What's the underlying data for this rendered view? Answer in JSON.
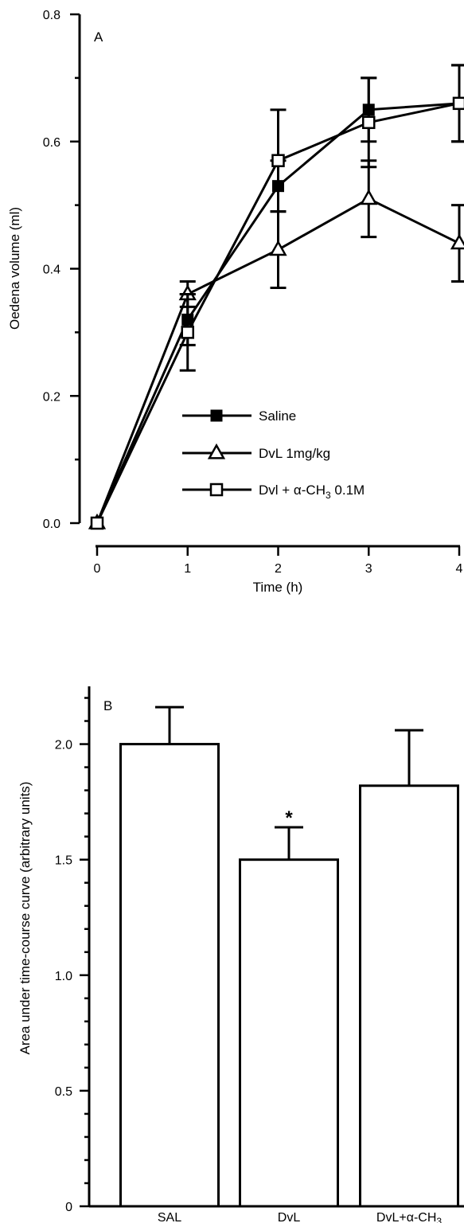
{
  "chart_data": [
    {
      "type": "line",
      "panel_label": "A",
      "xlabel": "Time (h)",
      "ylabel": "Oedena volume (ml)",
      "xlim": [
        0,
        4
      ],
      "ylim": [
        0,
        0.8
      ],
      "x_ticks": [
        0,
        1,
        2,
        3,
        4
      ],
      "x_tick_labels": [
        "0",
        "1",
        "2",
        "3",
        "4"
      ],
      "y_ticks": [
        0,
        0.2,
        0.4,
        0.6,
        0.8
      ],
      "y_tick_labels": [
        "0.0",
        "0.2",
        "0.4",
        "0.6",
        "0.8"
      ],
      "x": [
        0,
        1,
        2,
        3,
        4
      ],
      "legend_position": "bottom-center",
      "series": [
        {
          "name": "Saline",
          "marker": "filled-square",
          "values": [
            0,
            0.32,
            0.53,
            0.65,
            0.66
          ],
          "error": [
            0,
            0.04,
            0.04,
            0.05,
            0.06
          ]
        },
        {
          "name": "DvL 1mg/kg",
          "marker": "open-triangle",
          "values": [
            0,
            0.36,
            0.43,
            0.51,
            0.44
          ],
          "error": [
            0,
            0.02,
            0.06,
            0.06,
            0.06
          ]
        },
        {
          "name": "Dvl + α-CH3 0.1M",
          "legend_main": "Dvl + α-CH",
          "legend_sub": "3",
          "legend_tail": " 0.1M",
          "marker": "open-square",
          "values": [
            0,
            0.3,
            0.57,
            0.63,
            0.66
          ],
          "error": [
            0,
            0.06,
            0.08,
            0.07,
            0.06
          ]
        }
      ]
    },
    {
      "type": "bar",
      "panel_label": "B",
      "xlabel": "",
      "ylabel": "Area under time-course curve (arbitrary units)",
      "ylim": [
        0,
        2.25
      ],
      "y_ticks": [
        0,
        0.5,
        1.0,
        1.5,
        2.0
      ],
      "y_tick_labels": [
        "0",
        "0.5",
        "1.0",
        "1.5",
        "2.0"
      ],
      "categories": [
        "SAL",
        "DvL",
        "DvL+α-CH3"
      ],
      "category_labels": [
        {
          "main": "SAL",
          "sub": ""
        },
        {
          "main": "DvL",
          "sub": ""
        },
        {
          "main": "DvL+α-CH",
          "sub": "3"
        }
      ],
      "values": [
        2.0,
        1.5,
        1.82
      ],
      "error": [
        0.16,
        0.14,
        0.24
      ],
      "annotations": [
        "",
        "*",
        ""
      ]
    }
  ]
}
